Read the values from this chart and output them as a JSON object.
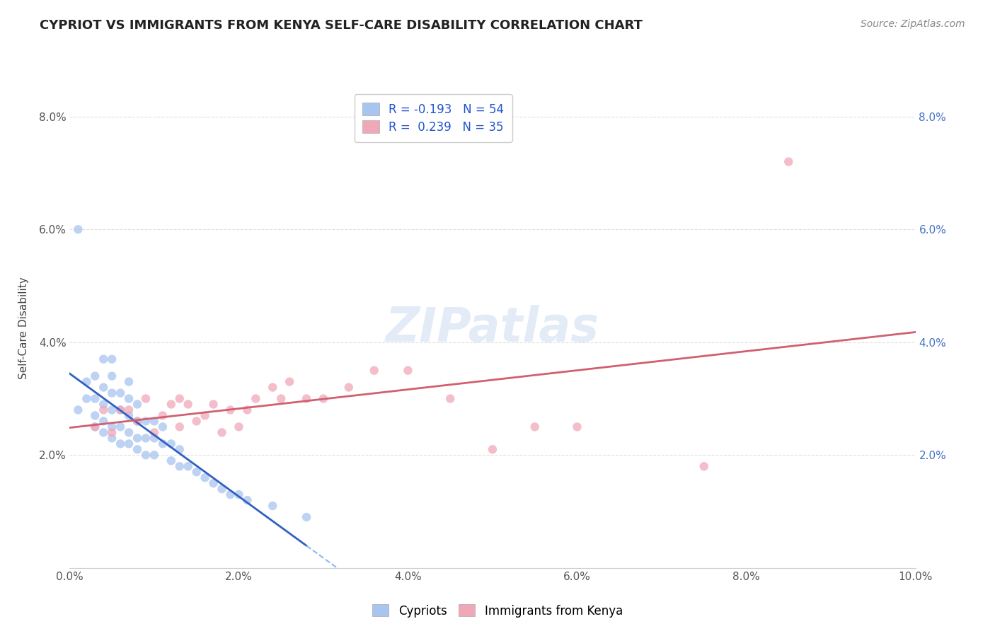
{
  "title": "CYPRIOT VS IMMIGRANTS FROM KENYA SELF-CARE DISABILITY CORRELATION CHART",
  "source": "Source: ZipAtlas.com",
  "ylabel": "Self-Care Disability",
  "legend_labels": [
    "Cypriots",
    "Immigrants from Kenya"
  ],
  "R_cypriot": -0.193,
  "N_cypriot": 54,
  "R_kenya": 0.239,
  "N_kenya": 35,
  "xlim": [
    0.0,
    0.1
  ],
  "ylim": [
    0.0,
    0.085
  ],
  "xticks": [
    0.0,
    0.02,
    0.04,
    0.06,
    0.08,
    0.1
  ],
  "yticks": [
    0.0,
    0.02,
    0.04,
    0.06,
    0.08
  ],
  "xtick_labels": [
    "0.0%",
    "2.0%",
    "4.0%",
    "6.0%",
    "8.0%",
    "10.0%"
  ],
  "ytick_labels_left": [
    "",
    "2.0%",
    "4.0%",
    "6.0%",
    "8.0%"
  ],
  "ytick_labels_right": [
    "",
    "2.0%",
    "4.0%",
    "6.0%",
    "8.0%"
  ],
  "color_cypriot": "#a8c4f0",
  "color_kenya": "#f0a8b8",
  "line_color_cypriot_solid": "#3060c0",
  "line_color_cypriot_dash": "#90b8e8",
  "line_color_kenya": "#d06070",
  "background_color": "#ffffff",
  "grid_color": "#dddddd",
  "cypriot_x": [
    0.001,
    0.002,
    0.002,
    0.003,
    0.003,
    0.003,
    0.003,
    0.004,
    0.004,
    0.004,
    0.004,
    0.004,
    0.005,
    0.005,
    0.005,
    0.005,
    0.005,
    0.005,
    0.006,
    0.006,
    0.006,
    0.006,
    0.007,
    0.007,
    0.007,
    0.007,
    0.007,
    0.008,
    0.008,
    0.008,
    0.008,
    0.009,
    0.009,
    0.009,
    0.01,
    0.01,
    0.01,
    0.011,
    0.011,
    0.012,
    0.012,
    0.013,
    0.013,
    0.014,
    0.015,
    0.016,
    0.017,
    0.018,
    0.019,
    0.02,
    0.021,
    0.024,
    0.028,
    0.001
  ],
  "cypriot_y": [
    0.028,
    0.03,
    0.033,
    0.025,
    0.027,
    0.03,
    0.034,
    0.024,
    0.026,
    0.029,
    0.032,
    0.037,
    0.023,
    0.025,
    0.028,
    0.031,
    0.034,
    0.037,
    0.022,
    0.025,
    0.028,
    0.031,
    0.022,
    0.024,
    0.027,
    0.03,
    0.033,
    0.021,
    0.023,
    0.026,
    0.029,
    0.02,
    0.023,
    0.026,
    0.02,
    0.023,
    0.026,
    0.022,
    0.025,
    0.019,
    0.022,
    0.018,
    0.021,
    0.018,
    0.017,
    0.016,
    0.015,
    0.014,
    0.013,
    0.013,
    0.012,
    0.011,
    0.009,
    0.06
  ],
  "kenya_x": [
    0.003,
    0.004,
    0.005,
    0.006,
    0.007,
    0.008,
    0.009,
    0.01,
    0.011,
    0.012,
    0.013,
    0.013,
    0.014,
    0.015,
    0.016,
    0.017,
    0.018,
    0.019,
    0.02,
    0.021,
    0.022,
    0.024,
    0.025,
    0.026,
    0.028,
    0.03,
    0.033,
    0.036,
    0.04,
    0.045,
    0.055,
    0.06,
    0.075,
    0.085,
    0.05
  ],
  "kenya_y": [
    0.025,
    0.028,
    0.024,
    0.028,
    0.028,
    0.026,
    0.03,
    0.024,
    0.027,
    0.029,
    0.025,
    0.03,
    0.029,
    0.026,
    0.027,
    0.029,
    0.024,
    0.028,
    0.025,
    0.028,
    0.03,
    0.032,
    0.03,
    0.033,
    0.03,
    0.03,
    0.032,
    0.035,
    0.035,
    0.03,
    0.025,
    0.025,
    0.018,
    0.072,
    0.021
  ]
}
